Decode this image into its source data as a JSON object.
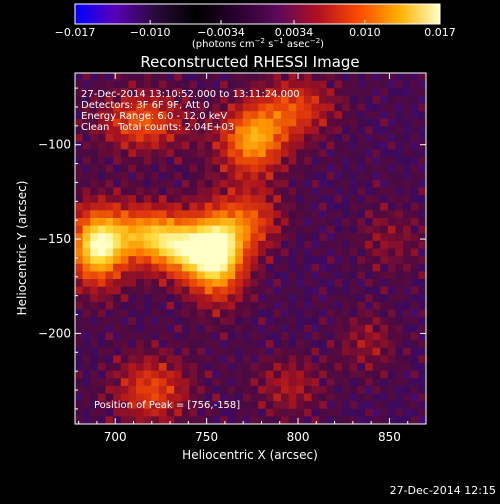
{
  "colorbar": {
    "tick_labels": [
      "−0.017",
      "−0.010",
      "−0.0034",
      "0.0034",
      "0.010",
      "0.017"
    ],
    "tick_values": [
      -0.017,
      -0.01,
      -0.0034,
      0.0034,
      0.01,
      0.017
    ],
    "range": [
      -0.017,
      0.017
    ],
    "units_prefix": "(photons cm",
    "units_exp1": "−2",
    "units_mid1": " s",
    "units_exp2": "−1",
    "units_mid2": " asec",
    "units_exp3": "−2",
    "units_suffix": ")",
    "colors": [
      "#0000ff",
      "#5a00b4",
      "#2a0a3a",
      "#000000",
      "#2a0030",
      "#5a0a5a",
      "#b01020",
      "#ff4a00",
      "#ffb000",
      "#ffffc8"
    ]
  },
  "chart_data": {
    "type": "heatmap",
    "title": "Reconstructed RHESSI Image",
    "xlabel": "Heliocentric X (arcsec)",
    "ylabel": "Heliocentric Y (arcsec)",
    "xlim": [
      678,
      870
    ],
    "ylim": [
      -248,
      -62
    ],
    "x_ticks": [
      700,
      750,
      800,
      850
    ],
    "y_ticks": [
      -100,
      -150,
      -200
    ],
    "sources": [
      {
        "x": 756,
        "y": -158,
        "intensity": 1.0,
        "sigma_x": 12,
        "sigma_y": 18
      },
      {
        "x": 690,
        "y": -154,
        "intensity": 0.95,
        "sigma_x": 12,
        "sigma_y": 16
      },
      {
        "x": 718,
        "y": -147,
        "intensity": 0.65,
        "sigma_x": 14,
        "sigma_y": 12
      },
      {
        "x": 735,
        "y": -156,
        "intensity": 0.55,
        "sigma_x": 12,
        "sigma_y": 12
      },
      {
        "x": 777,
        "y": -140,
        "intensity": 0.45,
        "sigma_x": 12,
        "sigma_y": 12
      },
      {
        "x": 715,
        "y": -88,
        "intensity": 0.6,
        "sigma_x": 18,
        "sigma_y": 12
      },
      {
        "x": 775,
        "y": -98,
        "intensity": 0.75,
        "sigma_x": 14,
        "sigma_y": 14
      },
      {
        "x": 800,
        "y": -80,
        "intensity": 0.5,
        "sigma_x": 16,
        "sigma_y": 12
      },
      {
        "x": 720,
        "y": -230,
        "intensity": 0.55,
        "sigma_x": 16,
        "sigma_y": 14
      },
      {
        "x": 795,
        "y": -228,
        "intensity": 0.35,
        "sigma_x": 14,
        "sigma_y": 12
      },
      {
        "x": 838,
        "y": -205,
        "intensity": 0.3,
        "sigma_x": 12,
        "sigma_y": 12
      },
      {
        "x": 850,
        "y": -150,
        "intensity": 0.25,
        "sigma_x": 14,
        "sigma_y": 14
      }
    ],
    "peak": {
      "x": 756,
      "y": -158
    }
  },
  "annotations": {
    "line1": "27-Dec-2014 13:10:52.000 to 13:11:24.000",
    "line2": "Detectors: 3F 6F 9F, Att 0",
    "line3": "Energy Range: 6.0 - 12.0 keV",
    "line4_left": "Clean",
    "line4_right": "Total counts: 2.04E+03",
    "peak_text": "Position of Peak = [756,-158]"
  },
  "footer": {
    "timestamp": "27-Dec-2014 12:15"
  }
}
